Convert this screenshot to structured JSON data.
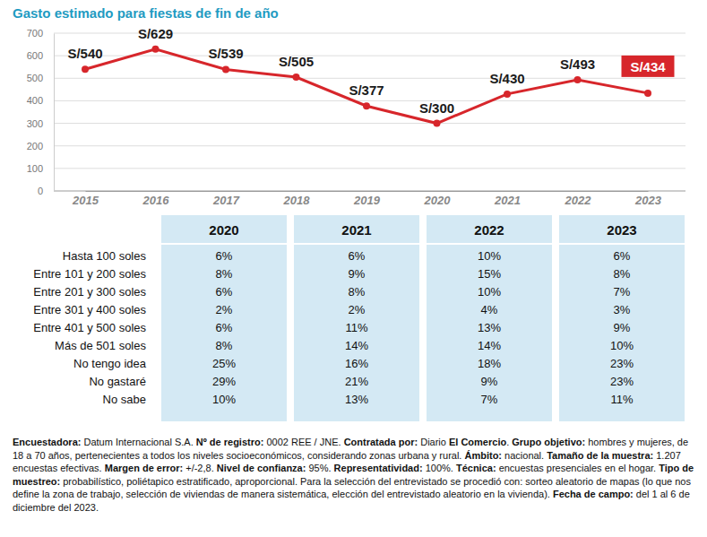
{
  "chart_data": {
    "type": "line",
    "title": "Gasto estimado para fiestas de fin de año",
    "categories": [
      "2015",
      "2016",
      "2017",
      "2018",
      "2019",
      "2020",
      "2021",
      "2022",
      "2023"
    ],
    "values": [
      540,
      629,
      539,
      505,
      377,
      300,
      430,
      493,
      434
    ],
    "value_labels": [
      "S/540",
      "S/629",
      "S/539",
      "S/505",
      "S/377",
      "S/300",
      "S/430",
      "S/493",
      "S/434"
    ],
    "color": "#d7262b",
    "marker": "circle",
    "data_labels": true,
    "grid": true,
    "ylim": [
      0,
      700
    ],
    "yticks": [
      0,
      100,
      200,
      300,
      400,
      500,
      600,
      700
    ]
  },
  "table": {
    "columns": [
      "2020",
      "2021",
      "2022",
      "2023"
    ],
    "rows": [
      {
        "label": "Hasta 100 soles",
        "cells": [
          "6%",
          "6%",
          "10%",
          "6%"
        ]
      },
      {
        "label": "Entre 101 y 200 soles",
        "cells": [
          "8%",
          "9%",
          "15%",
          "8%"
        ]
      },
      {
        "label": "Entre 201 y 300 soles",
        "cells": [
          "6%",
          "8%",
          "10%",
          "7%"
        ]
      },
      {
        "label": "Entre 301 y 400 soles",
        "cells": [
          "2%",
          "2%",
          "4%",
          "3%"
        ]
      },
      {
        "label": "Entre 401 y 500 soles",
        "cells": [
          "6%",
          "11%",
          "13%",
          "9%"
        ]
      },
      {
        "label": "Más de 501 soles",
        "cells": [
          "8%",
          "14%",
          "14%",
          "10%"
        ]
      },
      {
        "label": "No tengo idea",
        "cells": [
          "25%",
          "16%",
          "18%",
          "23%"
        ]
      },
      {
        "label": "No gastaré",
        "cells": [
          "29%",
          "21%",
          "9%",
          "23%"
        ]
      },
      {
        "label": "No sabe",
        "cells": [
          "10%",
          "13%",
          "7%",
          "11%"
        ]
      }
    ]
  },
  "footnote": [
    {
      "text": "Encuestadora:",
      "bold": true
    },
    {
      "text": " Datum Internacional S.A. ",
      "bold": false
    },
    {
      "text": "Nº de registro:",
      "bold": true
    },
    {
      "text": " 0002 REE / JNE. ",
      "bold": false
    },
    {
      "text": "Contratada por:",
      "bold": true
    },
    {
      "text": " Diario ",
      "bold": false
    },
    {
      "text": "El Comercio",
      "bold": true
    },
    {
      "text": ". ",
      "bold": false
    },
    {
      "text": "Grupo objetivo:",
      "bold": true
    },
    {
      "text": " hombres y mujeres, de 18 a 70 años, pertenecientes a todos los niveles socioeconómicos, considerando zonas urbana y rural. ",
      "bold": false
    },
    {
      "text": "Ámbito:",
      "bold": true
    },
    {
      "text": " nacional. ",
      "bold": false
    },
    {
      "text": "Tamaño de la muestra:",
      "bold": true
    },
    {
      "text": " 1.207 encuestas efectivas. ",
      "bold": false
    },
    {
      "text": "Margen de error:",
      "bold": true
    },
    {
      "text": " +/-2,8. ",
      "bold": false
    },
    {
      "text": "Nivel de confianza:",
      "bold": true
    },
    {
      "text": " 95%. ",
      "bold": false
    },
    {
      "text": "Representatividad:",
      "bold": true
    },
    {
      "text": " 100%. ",
      "bold": false
    },
    {
      "text": "Técnica:",
      "bold": true
    },
    {
      "text": " encuestas presenciales en el hogar. ",
      "bold": false
    },
    {
      "text": "Tipo de muestreo:",
      "bold": true
    },
    {
      "text": " probabilístico, poliétapico estratificado, aproporcional. Para la selección del entrevistado se procedió con: sorteo aleatorio de mapas (lo que nos define la zona de trabajo, selección de viviendas de manera sistemática, elección del entrevistado aleatorio en la vivienda). ",
      "bold": false
    },
    {
      "text": "Fecha de campo:",
      "bold": true
    },
    {
      "text": " del 1 al 6 de diciembre del 2023.",
      "bold": false
    }
  ]
}
